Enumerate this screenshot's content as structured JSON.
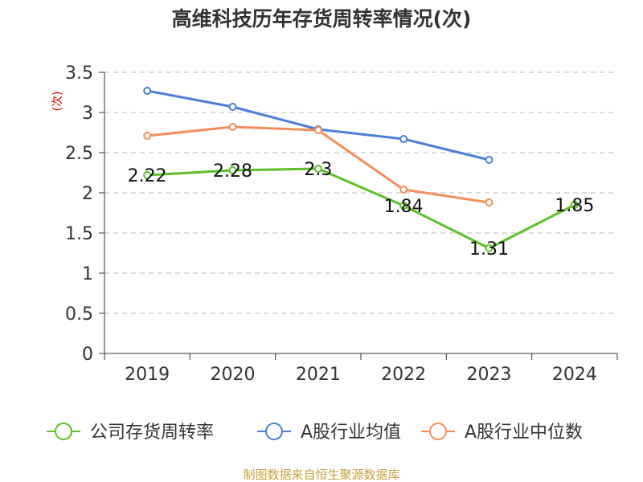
{
  "chart_data": {
    "type": "line",
    "title": "高维科技历年存货周转率情况(次)",
    "ylabel": "(次)",
    "xlabel": "",
    "categories": [
      "2019",
      "2020",
      "2021",
      "2022",
      "2023",
      "2024"
    ],
    "ylim": [
      0,
      3.5
    ],
    "yticks": [
      "0",
      "0.5",
      "1",
      "1.5",
      "2",
      "2.5",
      "3",
      "3.5"
    ],
    "grid": true,
    "legend_position": "bottom",
    "series": [
      {
        "name": "公司存货周转率",
        "color": "#5cc126",
        "values": [
          2.22,
          2.28,
          2.3,
          1.84,
          1.31,
          1.85
        ],
        "labels": [
          "2.22",
          "2.28",
          "2.3",
          "1.84",
          "1.31",
          "1.85"
        ]
      },
      {
        "name": "A股行业均值",
        "color": "#4a7fd8",
        "values": [
          3.27,
          3.07,
          2.79,
          2.67,
          2.41,
          null
        ]
      },
      {
        "name": "A股行业中位数",
        "color": "#f58d5a",
        "values": [
          2.71,
          2.82,
          2.78,
          2.04,
          1.88,
          null
        ]
      }
    ]
  },
  "source": "制图数据来自恒生聚源数据库"
}
